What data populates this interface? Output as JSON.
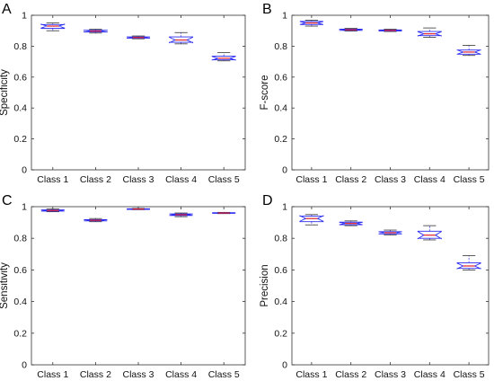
{
  "chart_data": [
    {
      "panel_label": "A",
      "type": "box",
      "ylabel": "Specificity",
      "xlabel": "",
      "ylim": [
        0,
        1
      ],
      "yticks": [
        0,
        0.2,
        0.4,
        0.6,
        0.8,
        1
      ],
      "categories": [
        "Class 1",
        "Class 2",
        "Class 3",
        "Class 4",
        "Class 5"
      ],
      "boxes": [
        {
          "min": 0.9,
          "q1": 0.915,
          "median": 0.93,
          "q3": 0.94,
          "max": 0.95
        },
        {
          "min": 0.885,
          "q1": 0.892,
          "median": 0.898,
          "q3": 0.903,
          "max": 0.91
        },
        {
          "min": 0.848,
          "q1": 0.852,
          "median": 0.856,
          "q3": 0.86,
          "max": 0.866
        },
        {
          "min": 0.815,
          "q1": 0.825,
          "median": 0.84,
          "q3": 0.86,
          "max": 0.888
        },
        {
          "min": 0.705,
          "q1": 0.712,
          "median": 0.722,
          "q3": 0.735,
          "max": 0.758
        }
      ]
    },
    {
      "panel_label": "B",
      "type": "box",
      "ylabel": "F-score",
      "xlabel": "",
      "ylim": [
        0,
        1
      ],
      "yticks": [
        0,
        0.2,
        0.4,
        0.6,
        0.8,
        1
      ],
      "categories": [
        "Class 1",
        "Class 2",
        "Class 3",
        "Class 4",
        "Class 5"
      ],
      "boxes": [
        {
          "min": 0.93,
          "q1": 0.94,
          "median": 0.95,
          "q3": 0.96,
          "max": 0.968
        },
        {
          "min": 0.898,
          "q1": 0.902,
          "median": 0.906,
          "q3": 0.91,
          "max": 0.915
        },
        {
          "min": 0.895,
          "q1": 0.899,
          "median": 0.902,
          "q3": 0.905,
          "max": 0.91
        },
        {
          "min": 0.858,
          "q1": 0.868,
          "median": 0.88,
          "q3": 0.895,
          "max": 0.918
        },
        {
          "min": 0.74,
          "q1": 0.748,
          "median": 0.762,
          "q3": 0.775,
          "max": 0.805
        }
      ]
    },
    {
      "panel_label": "C",
      "type": "box",
      "ylabel": "Sensitivity",
      "xlabel": "",
      "ylim": [
        0,
        1
      ],
      "yticks": [
        0,
        0.2,
        0.4,
        0.6,
        0.8,
        1
      ],
      "categories": [
        "Class 1",
        "Class 2",
        "Class 3",
        "Class 4",
        "Class 5"
      ],
      "boxes": [
        {
          "min": 0.968,
          "q1": 0.972,
          "median": 0.976,
          "q3": 0.98,
          "max": 0.985
        },
        {
          "min": 0.905,
          "q1": 0.91,
          "median": 0.914,
          "q3": 0.918,
          "max": 0.925
        },
        {
          "min": 0.981,
          "q1": 0.983,
          "median": 0.985,
          "q3": 0.987,
          "max": 0.989
        },
        {
          "min": 0.937,
          "q1": 0.944,
          "median": 0.949,
          "q3": 0.954,
          "max": 0.96
        },
        {
          "min": 0.956,
          "q1": 0.958,
          "median": 0.96,
          "q3": 0.962,
          "max": 0.964
        }
      ]
    },
    {
      "panel_label": "D",
      "type": "box",
      "ylabel": "Precision",
      "xlabel": "",
      "ylim": [
        0,
        1
      ],
      "yticks": [
        0,
        0.2,
        0.4,
        0.6,
        0.8,
        1
      ],
      "categories": [
        "Class 1",
        "Class 2",
        "Class 3",
        "Class 4",
        "Class 5"
      ],
      "boxes": [
        {
          "min": 0.885,
          "q1": 0.905,
          "median": 0.925,
          "q3": 0.94,
          "max": 0.95
        },
        {
          "min": 0.88,
          "q1": 0.886,
          "median": 0.894,
          "q3": 0.902,
          "max": 0.91
        },
        {
          "min": 0.822,
          "q1": 0.828,
          "median": 0.835,
          "q3": 0.842,
          "max": 0.852
        },
        {
          "min": 0.79,
          "q1": 0.8,
          "median": 0.82,
          "q3": 0.845,
          "max": 0.88
        },
        {
          "min": 0.6,
          "q1": 0.61,
          "median": 0.625,
          "q3": 0.645,
          "max": 0.69
        }
      ]
    }
  ],
  "style": {
    "box_color": "#2a2af0",
    "median_color": "#e0202a",
    "axis_color": "#333333",
    "label_color": "#111111",
    "panel_label_color": "#000000",
    "grid": false,
    "notched": true
  }
}
